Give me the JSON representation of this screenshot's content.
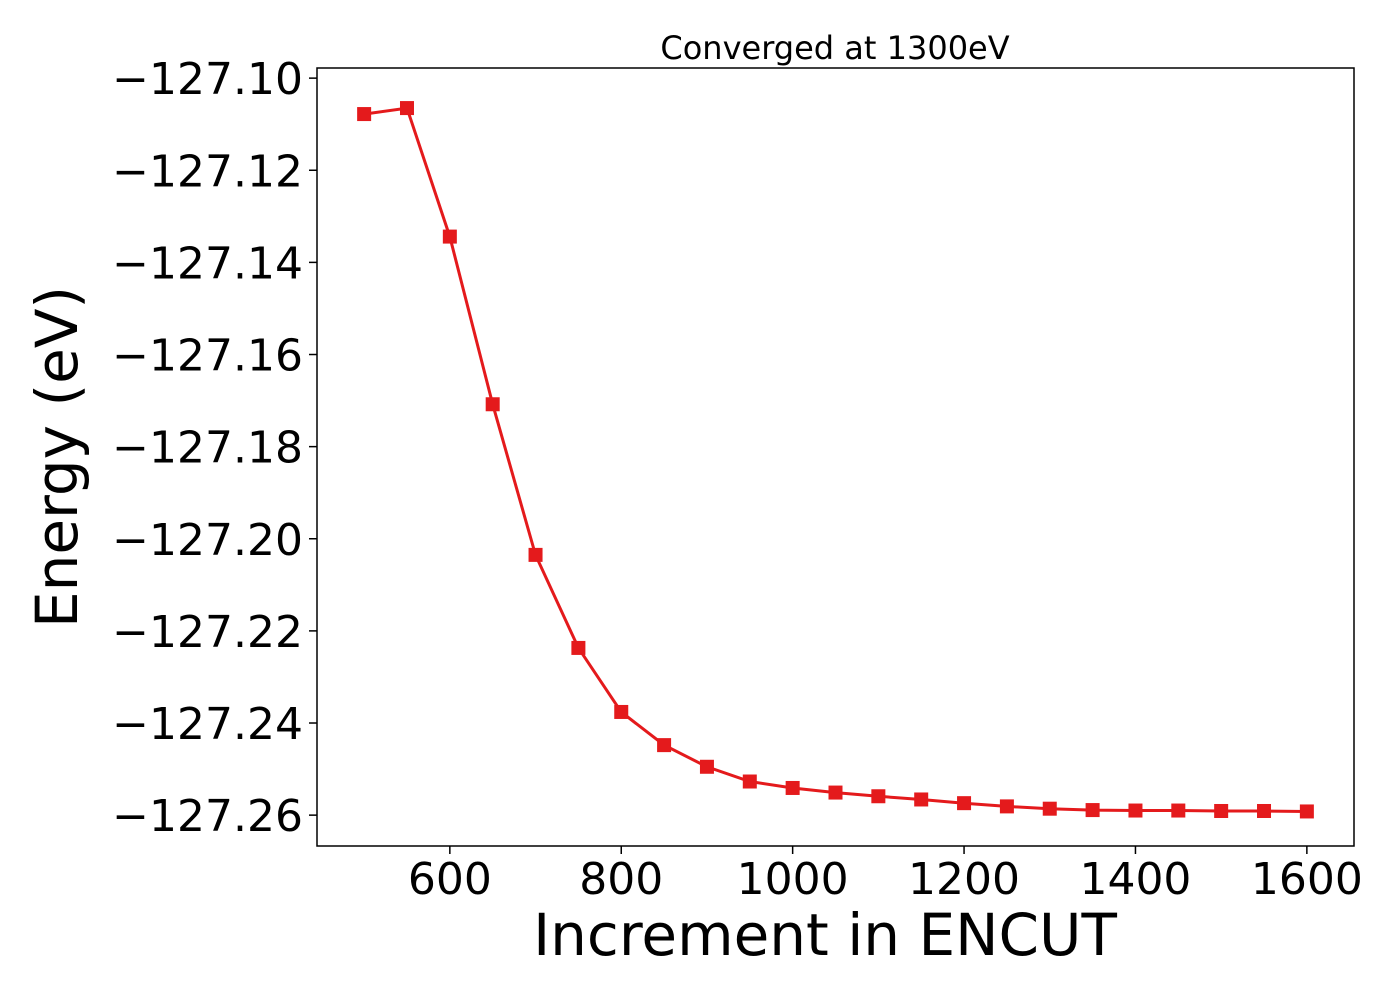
{
  "chart_data": {
    "type": "line",
    "title": "Converged at 1300eV",
    "xlabel": "Increment in ENCUT",
    "ylabel": "Energy (eV)",
    "xlim": [
      445,
      1655
    ],
    "ylim": [
      -127.2667,
      -127.0978
    ],
    "x_ticks": [
      600,
      800,
      1000,
      1200,
      1400,
      1600
    ],
    "x_tick_labels": [
      "600",
      "800",
      "1000",
      "1200",
      "1400",
      "1600"
    ],
    "y_ticks": [
      -127.1,
      -127.12,
      -127.14,
      -127.16,
      -127.18,
      -127.2,
      -127.22,
      -127.24,
      -127.26
    ],
    "y_tick_labels": [
      "−127.10",
      "−127.12",
      "−127.14",
      "−127.16",
      "−127.18",
      "−127.20",
      "−127.22",
      "−127.24",
      "−127.26"
    ],
    "grid": false,
    "legend": false,
    "series": [
      {
        "color": "#e41a1c",
        "marker": "square",
        "x": [
          500,
          550,
          600,
          650,
          700,
          750,
          800,
          850,
          900,
          950,
          1000,
          1050,
          1100,
          1150,
          1200,
          1250,
          1300,
          1350,
          1400,
          1450,
          1500,
          1550,
          1600
        ],
        "y": [
          -127.1078,
          -127.1065,
          -127.1344,
          -127.1708,
          -127.2035,
          -127.2237,
          -127.2376,
          -127.2448,
          -127.2495,
          -127.2527,
          -127.2541,
          -127.2551,
          -127.2559,
          -127.2566,
          -127.2574,
          -127.2581,
          -127.2586,
          -127.2589,
          -127.259,
          -127.259,
          -127.2591,
          -127.2591,
          -127.2592
        ]
      }
    ]
  }
}
